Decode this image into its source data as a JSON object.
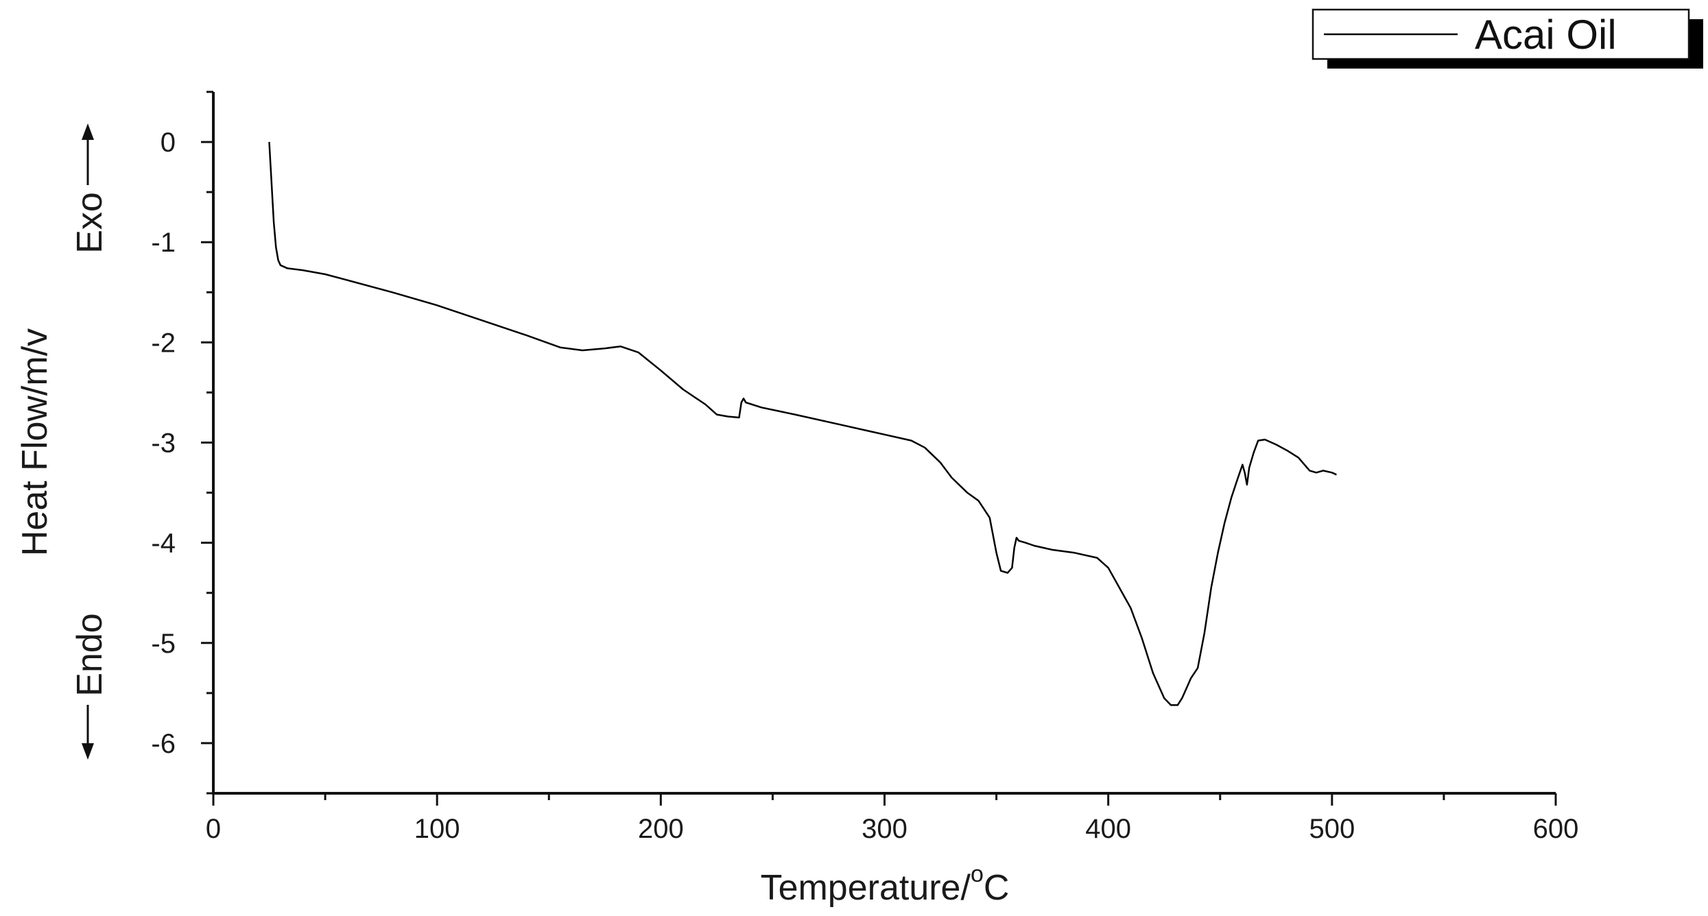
{
  "chart_data": {
    "type": "line",
    "title": "",
    "xlabel": "Temperature/",
    "xlabel_superscript": "o",
    "xlabel_unit": "C",
    "ylabel": "Heat Flow/m/v",
    "exo_label": "Exo",
    "endo_label": "Endo",
    "xlim": [
      0,
      600
    ],
    "ylim": [
      -6.5,
      0.5
    ],
    "x_ticks": [
      0,
      100,
      200,
      300,
      400,
      500,
      600
    ],
    "y_ticks": [
      0,
      -1,
      -2,
      -3,
      -4,
      -5,
      -6
    ],
    "grid": false,
    "legend_position": "top-right",
    "series": [
      {
        "name": "Acai Oil",
        "color": "#000000",
        "x": [
          25,
          26,
          27,
          28,
          29,
          30,
          33,
          40,
          50,
          60,
          80,
          100,
          120,
          140,
          155,
          165,
          175,
          182,
          190,
          200,
          210,
          220,
          225,
          230,
          235,
          236,
          237,
          238,
          245,
          260,
          280,
          300,
          312,
          318,
          325,
          330,
          337,
          342,
          347,
          350,
          352,
          355,
          357,
          358,
          359,
          360,
          363,
          367,
          375,
          385,
          395,
          400,
          405,
          410,
          415,
          420,
          425,
          428,
          431,
          433,
          435,
          437,
          440,
          443,
          446,
          449,
          452,
          455,
          458,
          460,
          461,
          462,
          463,
          465,
          467,
          470,
          475,
          480,
          485,
          490,
          493,
          496,
          500,
          502
        ],
        "y": [
          0.0,
          -0.4,
          -0.8,
          -1.05,
          -1.18,
          -1.23,
          -1.26,
          -1.28,
          -1.32,
          -1.38,
          -1.5,
          -1.63,
          -1.78,
          -1.93,
          -2.05,
          -2.08,
          -2.06,
          -2.04,
          -2.1,
          -2.28,
          -2.47,
          -2.62,
          -2.72,
          -2.74,
          -2.75,
          -2.6,
          -2.56,
          -2.6,
          -2.65,
          -2.72,
          -2.82,
          -2.92,
          -2.98,
          -3.05,
          -3.2,
          -3.35,
          -3.5,
          -3.58,
          -3.75,
          -4.1,
          -4.28,
          -4.3,
          -4.25,
          -4.05,
          -3.95,
          -3.98,
          -4.0,
          -4.03,
          -4.07,
          -4.1,
          -4.15,
          -4.25,
          -4.45,
          -4.65,
          -4.95,
          -5.3,
          -5.55,
          -5.62,
          -5.62,
          -5.55,
          -5.45,
          -5.35,
          -5.25,
          -4.9,
          -4.45,
          -4.1,
          -3.8,
          -3.55,
          -3.35,
          -3.22,
          -3.3,
          -3.42,
          -3.25,
          -3.1,
          -2.98,
          -2.97,
          -3.02,
          -3.08,
          -3.15,
          -3.28,
          -3.3,
          -3.28,
          -3.3,
          -3.32
        ]
      }
    ]
  }
}
